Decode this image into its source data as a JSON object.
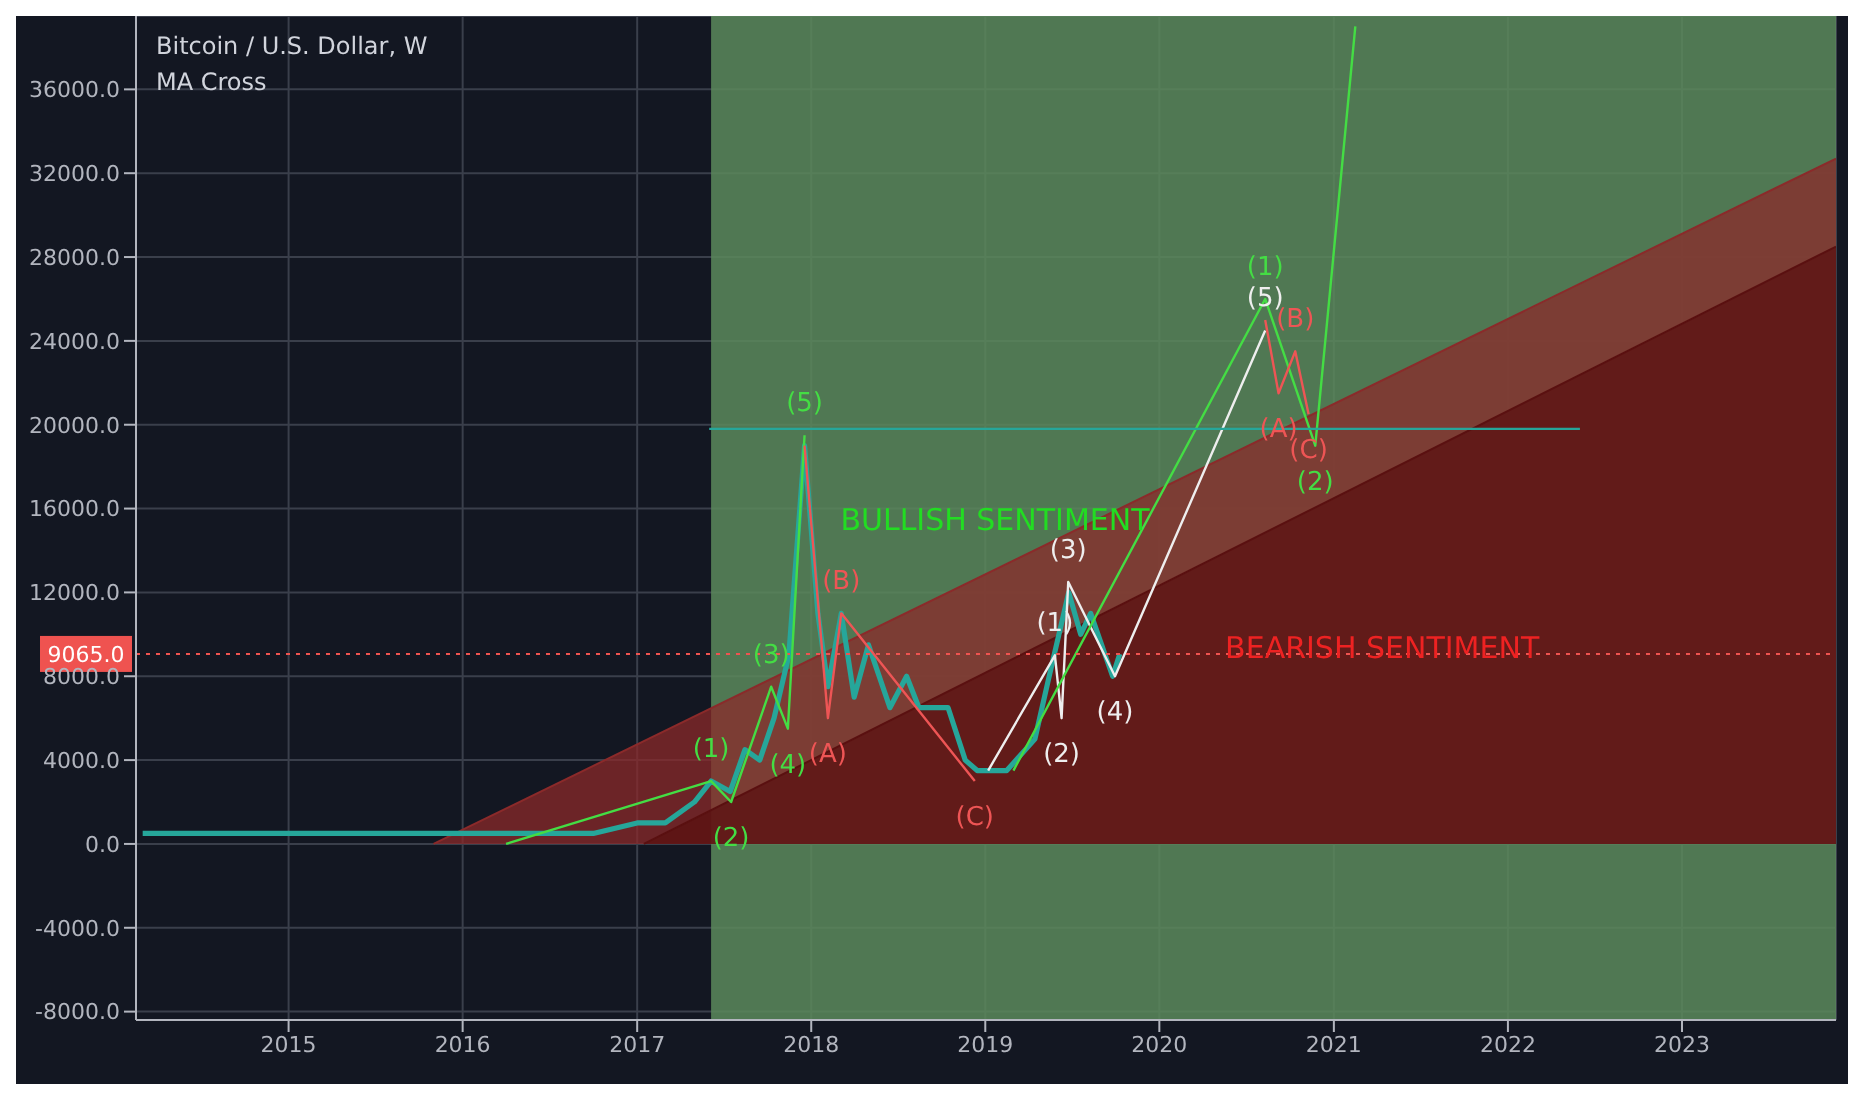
{
  "chart_data": {
    "type": "line",
    "title": "Bitcoin / U.S. Dollar, W",
    "subtitle": "MA Cross",
    "xlim": [
      "2014-02-15",
      "2023-11-20"
    ],
    "ylim": [
      -8400,
      39500
    ],
    "xticks": [
      {
        "value": "2015-01-01",
        "label": "2015"
      },
      {
        "value": "2016-01-01",
        "label": "2016"
      },
      {
        "value": "2017-01-01",
        "label": "2017"
      },
      {
        "value": "2018-01-01",
        "label": "2018"
      },
      {
        "value": "2019-01-01",
        "label": "2019"
      },
      {
        "value": "2020-01-01",
        "label": "2020"
      },
      {
        "value": "2021-01-01",
        "label": "2021"
      },
      {
        "value": "2022-01-01",
        "label": "2022"
      },
      {
        "value": "2023-01-01",
        "label": "2023"
      }
    ],
    "yticks": [
      {
        "value": -8000,
        "label": "-8000.0"
      },
      {
        "value": -4000,
        "label": "-4000.0"
      },
      {
        "value": 0,
        "label": "0.0"
      },
      {
        "value": 4000,
        "label": "4000.0"
      },
      {
        "value": 8000,
        "label": "8000.0"
      },
      {
        "value": 12000,
        "label": "12000.0"
      },
      {
        "value": 16000,
        "label": "16000.0"
      },
      {
        "value": 20000,
        "label": "20000.0"
      },
      {
        "value": 24000,
        "label": "24000.0"
      },
      {
        "value": 28000,
        "label": "28000.0"
      },
      {
        "value": 32000,
        "label": "32000.0"
      },
      {
        "value": 36000,
        "label": "36000.0"
      }
    ],
    "grid": true,
    "marker": "none",
    "line_style": "solid",
    "series": [
      {
        "type": "area",
        "color": "#8b2a2a",
        "x": [
          "2015-11-01",
          "2023-11-20"
        ],
        "values": [
          0,
          32700
        ]
      },
      {
        "type": "area",
        "color": "#5a1010",
        "x": [
          "2017-01-15",
          "2023-11-20"
        ],
        "values": [
          0,
          28500
        ]
      },
      {
        "color": "#26a69a",
        "x": [
          "2014-03-01",
          "2014-06-01",
          "2014-09-01",
          "2015-01-01",
          "2015-06-01",
          "2015-10-01",
          "2016-01-01",
          "2016-06-01",
          "2016-10-01",
          "2017-01-01",
          "2017-03-01",
          "2017-05-01",
          "2017-06-05",
          "2017-07-15",
          "2017-08-15",
          "2017-09-15",
          "2017-10-15",
          "2017-11-15",
          "2017-12-18",
          "2018-01-15",
          "2018-02-05",
          "2018-03-05",
          "2018-04-01",
          "2018-05-01",
          "2018-06-15",
          "2018-07-20",
          "2018-08-15",
          "2018-10-15",
          "2018-11-20",
          "2018-12-15",
          "2019-02-15",
          "2019-04-15",
          "2019-05-15",
          "2019-06-25",
          "2019-07-20",
          "2019-08-10",
          "2019-09-25",
          "2019-10-10"
        ],
        "values": [
          500,
          500,
          500,
          500,
          500,
          500,
          500,
          500,
          500,
          1000,
          1000,
          2000,
          3000,
          2500,
          4500,
          4000,
          6000,
          9000,
          19000,
          11000,
          7500,
          11000,
          7000,
          9500,
          6500,
          8000,
          6500,
          6500,
          4000,
          3500,
          3500,
          5000,
          8000,
          12000,
          10000,
          11000,
          8000,
          9065
        ]
      },
      {
        "color": "#44dd44",
        "x": [
          "2016-04-01",
          "2017-06-05",
          "2017-07-17",
          "2017-10-09",
          "2017-11-13",
          "2017-12-18"
        ],
        "values": [
          0,
          3000,
          2000,
          7500,
          5500,
          19500
        ]
      },
      {
        "color": "#ee5555",
        "x": [
          "2017-12-18",
          "2018-02-05",
          "2018-03-05",
          "2018-12-10"
        ],
        "values": [
          19000,
          6000,
          11000,
          3000
        ]
      },
      {
        "color": "#eeeeee",
        "x": [
          "2019-01-07",
          "2019-05-27",
          "2019-06-10",
          "2019-06-24",
          "2019-09-30",
          "2020-08-10"
        ],
        "values": [
          3500,
          9000,
          6000,
          12500,
          8000,
          24500
        ]
      },
      {
        "color": "#44dd44",
        "x": [
          "2019-03-01",
          "2020-08-10",
          "2020-11-23",
          "2021-02-15"
        ],
        "values": [
          3500,
          26000,
          19000,
          39000
        ]
      },
      {
        "color": "#ee5555",
        "x": [
          "2020-08-10",
          "2020-09-07",
          "2020-10-12",
          "2020-11-09"
        ],
        "values": [
          25000,
          21500,
          23500,
          20500
        ]
      },
      {
        "color": "#26a69a",
        "x": [
          "2017-06-01",
          "2022-06-01"
        ],
        "values": [
          19800,
          19800
        ]
      }
    ],
    "bands": [
      {
        "axis": "x",
        "from": "2017-06-05",
        "to": "2023-11-20",
        "color": "#5c8a5c"
      }
    ],
    "ref_lines": [
      {
        "axis": "y",
        "value": 9065,
        "label": "9065.0",
        "color": "#ef5350",
        "line_style": "dotted"
      }
    ],
    "annotations": [
      "BULLISH SENTIMENT",
      "BEARISH SENTIMENT",
      {
        "text": "(1)",
        "x": "2017-06-05",
        "y": 3000
      },
      {
        "text": "(2)",
        "x": "2017-07-17",
        "y": 2000
      },
      {
        "text": "(3)",
        "x": "2017-10-09",
        "y": 7500
      },
      {
        "text": "(4)",
        "x": "2017-11-13",
        "y": 5500
      },
      {
        "text": "(5)",
        "x": "2017-12-18",
        "y": 19500
      },
      {
        "text": "(A)",
        "x": "2018-02-05",
        "y": 6000
      },
      {
        "text": "(B)",
        "x": "2018-03-05",
        "y": 11000
      },
      {
        "text": "(C)",
        "x": "2018-12-10",
        "y": 3000
      },
      {
        "text": "(1)",
        "x": "2019-05-27",
        "y": 9000
      },
      {
        "text": "(2)",
        "x": "2019-06-10",
        "y": 6000
      },
      {
        "text": "(3)",
        "x": "2019-06-24",
        "y": 12500
      },
      {
        "text": "(4)",
        "x": "2019-09-30",
        "y": 8000
      },
      {
        "text": "(5)",
        "x": "2020-08-10",
        "y": 24500
      },
      {
        "text": "(1)",
        "x": "2020-08-10",
        "y": 26000
      },
      {
        "text": "(2)",
        "x": "2020-11-23",
        "y": 19000
      },
      {
        "text": "(A)",
        "x": "2020-09-07",
        "y": 21500
      },
      {
        "text": "(B)",
        "x": "2020-10-12",
        "y": 23500
      },
      {
        "text": "(C)",
        "x": "2020-11-09",
        "y": 20500
      }
    ]
  }
}
